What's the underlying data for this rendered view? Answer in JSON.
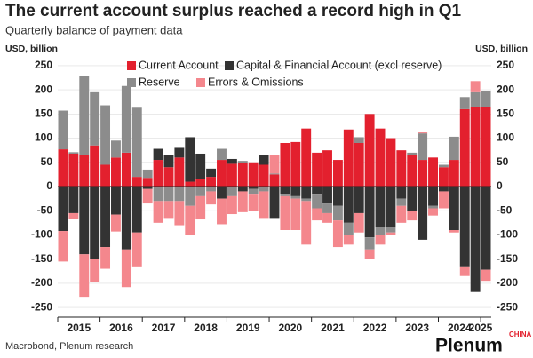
{
  "chart_data": {
    "type": "stacked_bar",
    "title": "The current account surplus reached a record high in Q1",
    "subtitle": "Quarterly balance of payment data",
    "y_label": "USD, billion",
    "y2_label": "USD, billion",
    "source": "Macrobond, Plenum research",
    "logo": "Plenum",
    "logo_sup": "CHINA",
    "categories": [
      "2015",
      null,
      null,
      null,
      "2016",
      null,
      null,
      null,
      "2017",
      null,
      null,
      null,
      "2018",
      null,
      null,
      null,
      "2019",
      null,
      null,
      null,
      "2020",
      null,
      null,
      null,
      "2021",
      null,
      null,
      null,
      "2022",
      null,
      null,
      null,
      "2023",
      null,
      null,
      null,
      "2024",
      null,
      null,
      null,
      "2025"
    ],
    "series": [
      {
        "name": "Current Account",
        "color": "#e3202e",
        "values": [
          77,
          68,
          65,
          85,
          45,
          60,
          70,
          20,
          18,
          55,
          40,
          60,
          10,
          15,
          20,
          55,
          47,
          48,
          50,
          45,
          25,
          90,
          92,
          120,
          70,
          75,
          55,
          118,
          90,
          150,
          120,
          100,
          75,
          65,
          55,
          60,
          40,
          55,
          160,
          165,
          165
        ]
      },
      {
        "name": "Capital & Financial Account (excl reserve)",
        "color": "#333333",
        "values": [
          -92,
          -55,
          -140,
          -150,
          -125,
          -58,
          -130,
          -95,
          -5,
          23,
          25,
          20,
          92,
          53,
          17,
          -25,
          10,
          -10,
          -5,
          20,
          -65,
          -15,
          -20,
          -25,
          -15,
          -35,
          -40,
          -75,
          -55,
          -105,
          -85,
          -85,
          -25,
          -50,
          -110,
          -40,
          -10,
          -90,
          -165,
          -218,
          -172
        ]
      },
      {
        "name": "Reserve",
        "color": "#8c8c8c",
        "values": [
          80,
          3,
          163,
          110,
          123,
          35,
          138,
          143,
          17,
          -30,
          -30,
          -30,
          -40,
          -20,
          -10,
          23,
          -20,
          5,
          -10,
          -10,
          2,
          -5,
          -5,
          -5,
          -30,
          -20,
          -30,
          -25,
          12,
          -25,
          -15,
          -10,
          -15,
          5,
          55,
          -5,
          5,
          48,
          25,
          30,
          32
        ]
      },
      {
        "name": "Errors & Omissions",
        "color": "#f4878d",
        "values": [
          -63,
          -12,
          -88,
          -48,
          -45,
          -35,
          -78,
          -70,
          -30,
          -45,
          -35,
          -50,
          -60,
          -48,
          -27,
          -53,
          -37,
          -43,
          -35,
          -55,
          38,
          -70,
          -65,
          -90,
          -25,
          -20,
          -55,
          -20,
          -40,
          -20,
          -20,
          -5,
          -35,
          -20,
          2,
          -15,
          -35,
          -5,
          -20,
          23,
          -23
        ]
      }
    ],
    "ylim": [
      -270,
      270
    ],
    "yticks": [
      -250,
      -200,
      -150,
      -100,
      -50,
      0,
      50,
      100,
      150,
      200,
      250
    ],
    "y2lim": [
      -270,
      270
    ],
    "y2ticks": [
      -250,
      -200,
      -150,
      -100,
      -50,
      0,
      50,
      100,
      150,
      200,
      250
    ],
    "legend": "top-left"
  }
}
